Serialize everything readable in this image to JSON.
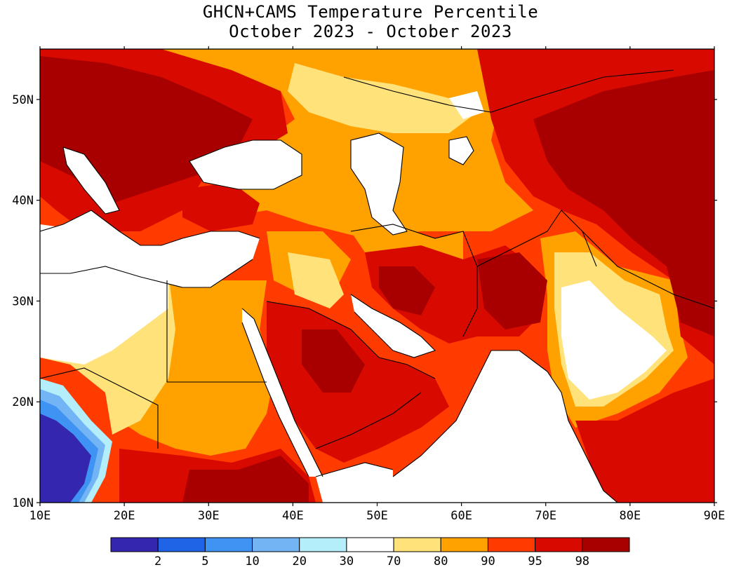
{
  "title": {
    "line1": "GHCN+CAMS Temperature Percentile",
    "line2": "October 2023 - October 2023"
  },
  "map": {
    "lon_range": [
      10,
      90
    ],
    "lat_range": [
      10,
      55
    ],
    "lon_ticks": [
      "10E",
      "20E",
      "30E",
      "40E",
      "50E",
      "60E",
      "70E",
      "80E",
      "90E"
    ],
    "lat_ticks": [
      "10N",
      "20N",
      "30N",
      "40N",
      "50N"
    ],
    "coastline_color": "#000000"
  },
  "legend": {
    "labels": [
      "2",
      "5",
      "10",
      "20",
      "30",
      "70",
      "80",
      "90",
      "95",
      "98"
    ],
    "colors": [
      "#3526b0",
      "#1f64e6",
      "#3f93f2",
      "#73b4f5",
      "#b3eefa",
      "#ffffff",
      "#ffe27a",
      "#ffa200",
      "#ff3b00",
      "#d80a00",
      "#a80000"
    ]
  }
}
